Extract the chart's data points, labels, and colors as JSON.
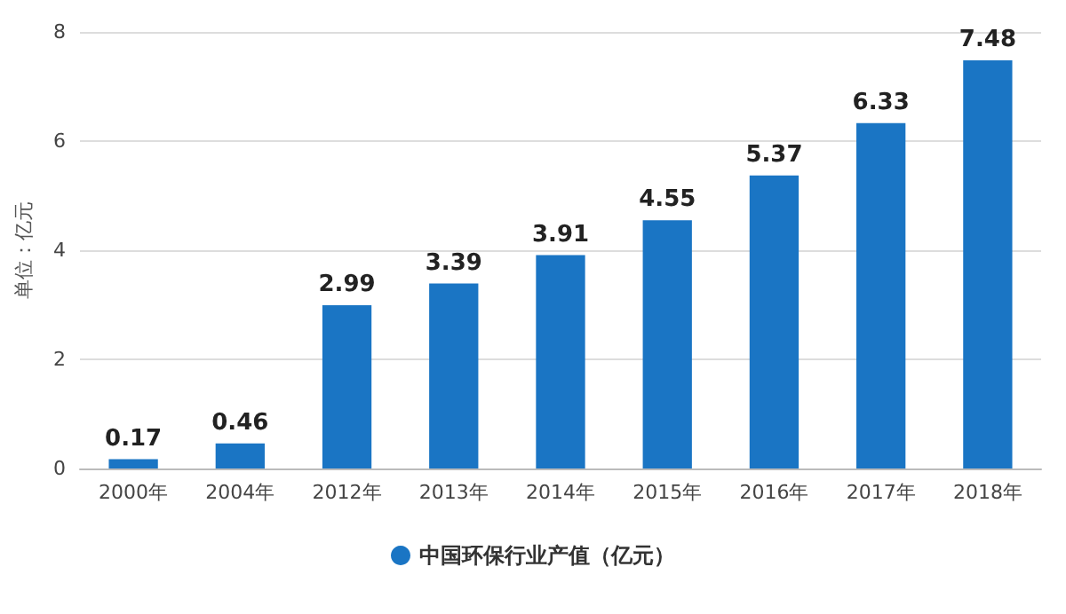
{
  "chart_data": {
    "type": "bar",
    "ylabel": "单位：亿元",
    "categories": [
      "2000年",
      "2004年",
      "2012年",
      "2013年",
      "2014年",
      "2015年",
      "2016年",
      "2017年",
      "2018年"
    ],
    "series": [
      {
        "name": "中国环保行业产值（亿元）",
        "color": "#1a75c4",
        "values": [
          0.17,
          0.46,
          2.99,
          3.39,
          3.91,
          4.55,
          5.37,
          6.33,
          7.48
        ]
      }
    ],
    "ylim": [
      0,
      8
    ],
    "yticks": [
      0,
      2,
      4,
      6,
      8
    ],
    "grid": "y",
    "legend": "bottom",
    "data_labels": true
  }
}
